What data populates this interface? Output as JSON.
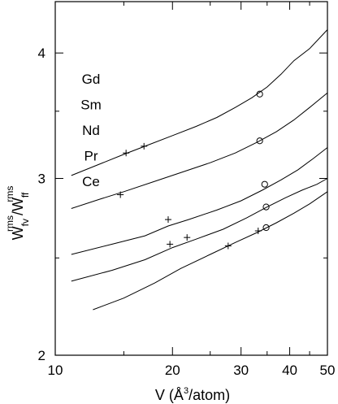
{
  "chart_data": {
    "type": "line",
    "x_scale": "log",
    "y_scale": "log",
    "xlim": [
      10,
      50
    ],
    "ylim": [
      2,
      4.5
    ],
    "xticks_major": [
      10,
      20,
      30,
      40,
      50
    ],
    "xticks_minor": [
      15,
      25,
      35,
      45
    ],
    "yticks_major": [
      2,
      3,
      4
    ],
    "yticks_minor": [
      2.5,
      3.5
    ],
    "xlabel": "V (Å³/atom)",
    "ylabel": "W_fv^rms / W_ff^rms",
    "ylabel_parts": {
      "main1": "W",
      "sub1": "fv",
      "sup1": "rms",
      "sep": "/W",
      "sub2": "ff",
      "sup2": "rms"
    },
    "xlabel_parts": {
      "pre": "V (Å",
      "sup": "3",
      "post": "/atom)"
    },
    "legend": [
      "Gd",
      "Sm",
      "Nd",
      "Pr",
      "Ce"
    ],
    "series": [
      {
        "name": "Gd",
        "x": [
          11.0,
          13.0,
          15.0,
          17.0,
          20.0,
          23.0,
          26.0,
          29.0,
          32.0,
          35.0,
          38.0,
          41.0,
          45.0,
          50.0
        ],
        "y": [
          3.02,
          3.1,
          3.17,
          3.23,
          3.31,
          3.38,
          3.45,
          3.53,
          3.61,
          3.7,
          3.81,
          3.93,
          4.04,
          4.22
        ],
        "plus_markers": [
          [
            15.2,
            3.18
          ],
          [
            16.9,
            3.23
          ]
        ],
        "circle_markers": [
          [
            33.5,
            3.64
          ]
        ]
      },
      {
        "name": "Sm",
        "x": [
          11.0,
          13.0,
          15.0,
          18.0,
          21.0,
          25.0,
          29.0,
          33.0,
          37.0,
          41.0,
          45.0,
          50.0
        ],
        "y": [
          2.8,
          2.86,
          2.91,
          2.98,
          3.04,
          3.11,
          3.18,
          3.26,
          3.34,
          3.43,
          3.53,
          3.65
        ],
        "plus_markers": [
          [
            14.7,
            2.89
          ]
        ],
        "circle_markers": [
          [
            33.5,
            3.27
          ]
        ]
      },
      {
        "name": "Nd",
        "x": [
          11.0,
          14.0,
          17.0,
          19.5,
          22.0,
          26.0,
          30.0,
          34.0,
          38.0,
          42.0,
          46.0,
          50.0
        ],
        "y": [
          2.52,
          2.58,
          2.63,
          2.69,
          2.73,
          2.79,
          2.85,
          2.92,
          2.99,
          3.06,
          3.14,
          3.22
        ],
        "plus_markers": [
          [
            19.5,
            2.73
          ]
        ],
        "circle_markers": [
          [
            34.5,
            2.96
          ]
        ]
      },
      {
        "name": "Pr",
        "x": [
          11.0,
          14.0,
          17.0,
          20.0,
          23.0,
          27.0,
          31.0,
          35.0,
          39.0,
          43.0,
          47.0,
          50.0
        ],
        "y": [
          2.37,
          2.43,
          2.49,
          2.56,
          2.61,
          2.67,
          2.74,
          2.81,
          2.87,
          2.92,
          2.96,
          3.0
        ],
        "plus_markers": [
          [
            19.7,
            2.58
          ],
          [
            21.8,
            2.62
          ]
        ],
        "circle_markers": [
          [
            34.8,
            2.81
          ]
        ]
      },
      {
        "name": "Ce",
        "x": [
          12.5,
          15.0,
          18.0,
          21.0,
          25.0,
          29.0,
          33.0,
          37.0,
          41.0,
          45.0,
          50.0
        ],
        "y": [
          2.22,
          2.28,
          2.36,
          2.44,
          2.52,
          2.59,
          2.65,
          2.71,
          2.77,
          2.83,
          2.91
        ],
        "plus_markers": [
          [
            27.8,
            2.57
          ],
          [
            33.2,
            2.66
          ]
        ],
        "circle_markers": [
          [
            34.8,
            2.68
          ]
        ]
      }
    ]
  }
}
